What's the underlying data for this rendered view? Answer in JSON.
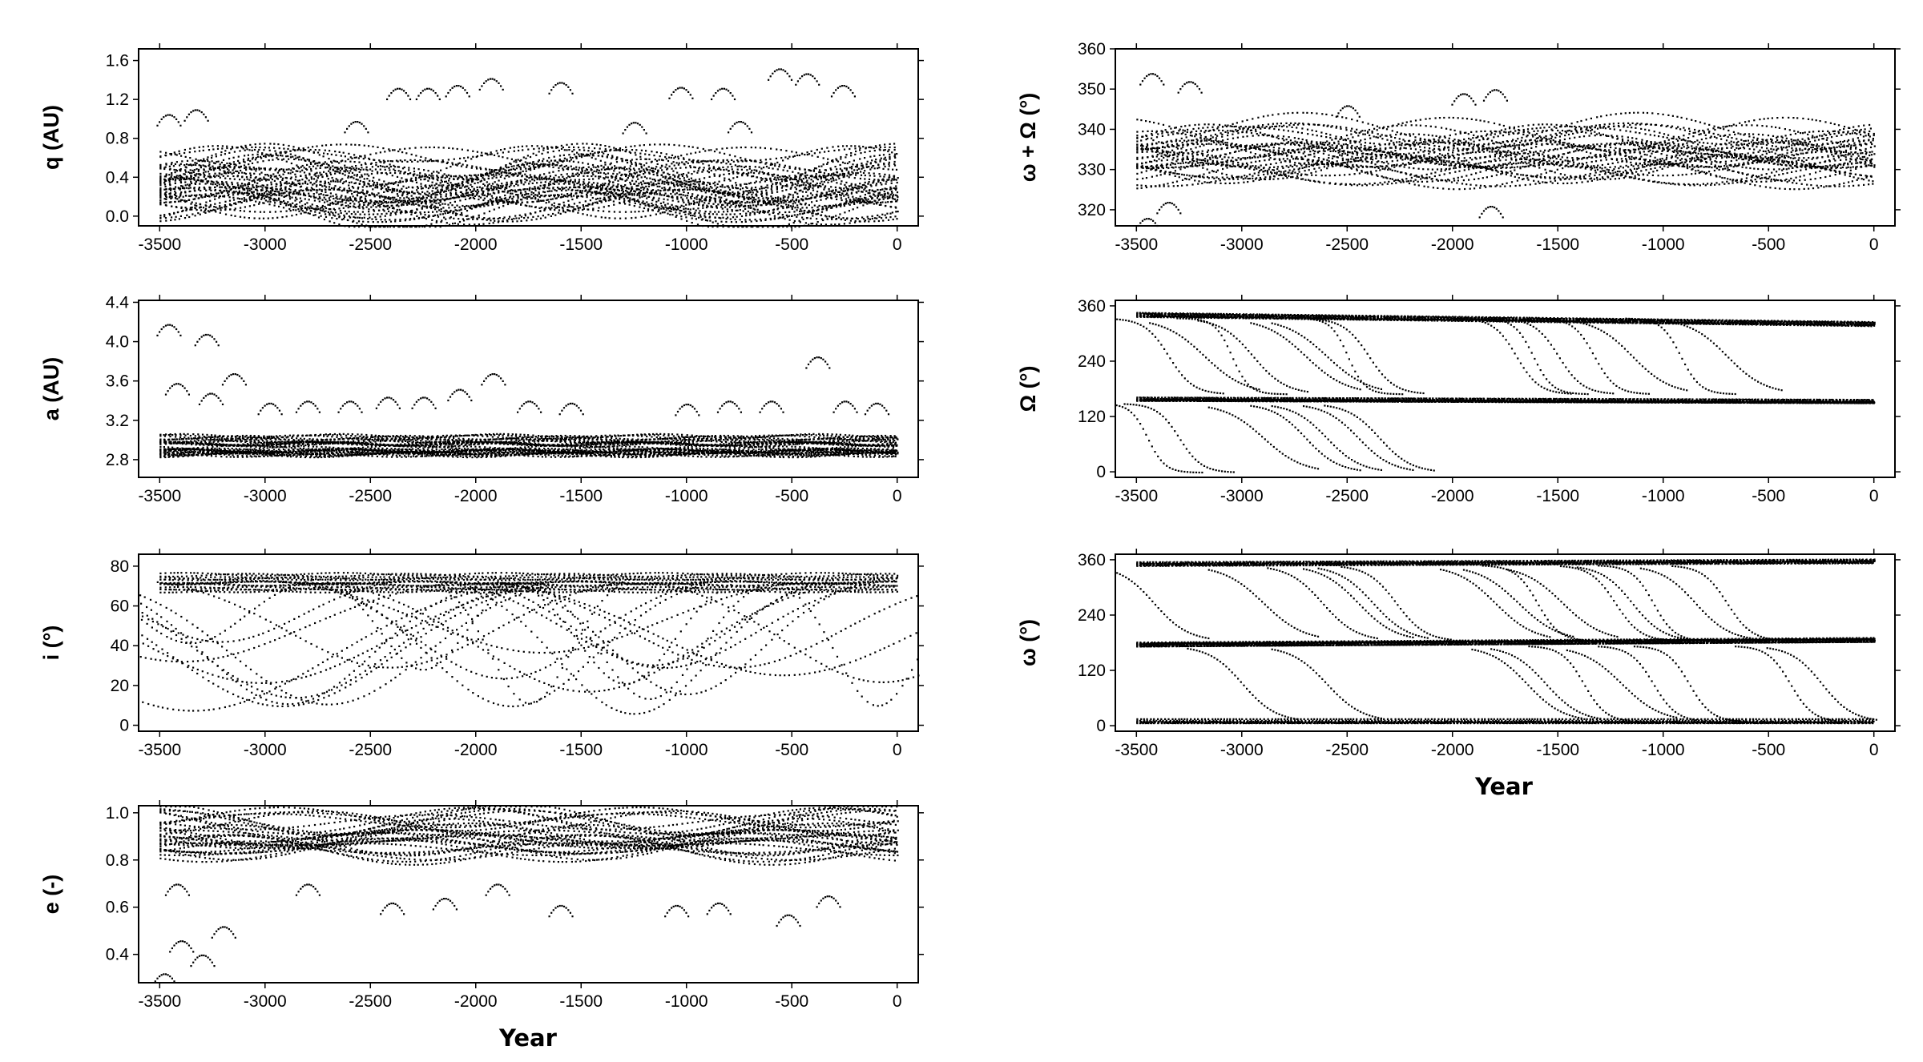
{
  "figure": {
    "x_axis_label": "Year"
  },
  "chart_data": [
    {
      "id": "q",
      "type": "scatter",
      "ylabel": "q (AU)",
      "xlabel": "",
      "xlim": [
        -3600,
        100
      ],
      "ylim": [
        -0.1,
        1.72
      ],
      "xticks": [
        -3500,
        -3000,
        -2500,
        -2000,
        -1500,
        -1000,
        -500,
        0
      ],
      "yticks": [
        0.0,
        0.4,
        0.8,
        1.2,
        1.6
      ],
      "ytick_labels": [
        "0.0",
        "0.4",
        "0.8",
        "1.2",
        "1.6"
      ],
      "curves": [
        {
          "kind": "sine",
          "base": 0.22,
          "amp": 0.18,
          "period": 1700,
          "phase": 0.3,
          "count": 30,
          "spread": 0.3
        },
        {
          "kind": "sine",
          "base": 0.55,
          "amp": 0.18,
          "period": 1500,
          "phase": 1.1,
          "count": 10,
          "spread": 0.25
        },
        {
          "kind": "arcs",
          "points": [
            [
              -3460,
              1.05
            ],
            [
              -3330,
              1.1
            ],
            [
              -2370,
              1.32
            ],
            [
              -2230,
              1.32
            ],
            [
              -2090,
              1.35
            ],
            [
              -1930,
              1.42
            ],
            [
              -1600,
              1.38
            ],
            [
              -1030,
              1.33
            ],
            [
              -830,
              1.32
            ],
            [
              -560,
              1.52
            ],
            [
              -430,
              1.47
            ],
            [
              -260,
              1.35
            ],
            [
              -2570,
              0.98
            ],
            [
              -1250,
              0.97
            ],
            [
              -750,
              0.98
            ]
          ]
        }
      ]
    },
    {
      "id": "a",
      "type": "scatter",
      "ylabel": "a (AU)",
      "xlabel": "",
      "xlim": [
        -3600,
        100
      ],
      "ylim": [
        2.62,
        4.42
      ],
      "xticks": [
        -3500,
        -3000,
        -2500,
        -2000,
        -1500,
        -1000,
        -500,
        0
      ],
      "yticks": [
        2.8,
        3.2,
        3.6,
        4.0,
        4.4
      ],
      "ytick_labels": [
        "2.8",
        "3.2",
        "3.6",
        "4.0",
        "4.4"
      ],
      "curves": [
        {
          "kind": "band",
          "base": 2.97,
          "spread": 0.24,
          "count": 34
        },
        {
          "kind": "arcs",
          "points": [
            [
              -3460,
              4.18
            ],
            [
              -3280,
              4.08
            ],
            [
              -3420,
              3.58
            ],
            [
              -3260,
              3.48
            ],
            [
              -3150,
              3.68
            ],
            [
              -2980,
              3.38
            ],
            [
              -2800,
              3.4
            ],
            [
              -2600,
              3.4
            ],
            [
              -2420,
              3.44
            ],
            [
              -2250,
              3.44
            ],
            [
              -2080,
              3.52
            ],
            [
              -1920,
              3.68
            ],
            [
              -1750,
              3.4
            ],
            [
              -1550,
              3.38
            ],
            [
              -1000,
              3.37
            ],
            [
              -800,
              3.4
            ],
            [
              -600,
              3.4
            ],
            [
              -380,
              3.85
            ],
            [
              -250,
              3.4
            ],
            [
              -100,
              3.38
            ]
          ]
        }
      ]
    },
    {
      "id": "i",
      "type": "scatter",
      "ylabel": "i (°)",
      "xlabel": "",
      "xlim": [
        -3600,
        100
      ],
      "ylim": [
        -3,
        86
      ],
      "xticks": [
        -3500,
        -3000,
        -2500,
        -2000,
        -1500,
        -1000,
        -500,
        0
      ],
      "yticks": [
        0,
        20,
        40,
        60,
        80
      ],
      "ytick_labels": [
        "0",
        "20",
        "40",
        "60",
        "80"
      ],
      "curves": [
        {
          "kind": "band",
          "base": 72,
          "spread": 9,
          "count": 14
        },
        {
          "kind": "valleys",
          "count": 26
        }
      ]
    },
    {
      "id": "e",
      "type": "scatter",
      "ylabel": "e (-)",
      "xlabel": "",
      "xlim": [
        -3600,
        100
      ],
      "ylim": [
        0.28,
        1.03
      ],
      "xticks": [
        -3500,
        -3000,
        -2500,
        -2000,
        -1500,
        -1000,
        -500,
        0
      ],
      "yticks": [
        0.4,
        0.6,
        0.8,
        1.0
      ],
      "ytick_labels": [
        "0.4",
        "0.6",
        "0.8",
        "1.0"
      ],
      "curves": [
        {
          "kind": "sine",
          "base": 0.91,
          "amp": 0.05,
          "period": 1700,
          "phase": 2.0,
          "count": 30,
          "spread": 0.14
        },
        {
          "kind": "arcs",
          "points": [
            [
              -3480,
              0.32
            ],
            [
              -3400,
              0.46
            ],
            [
              -3300,
              0.4
            ],
            [
              -3200,
              0.52
            ],
            [
              -2400,
              0.62
            ],
            [
              -2150,
              0.64
            ],
            [
              -1600,
              0.61
            ],
            [
              -1050,
              0.61
            ],
            [
              -850,
              0.62
            ],
            [
              -520,
              0.57
            ],
            [
              -330,
              0.65
            ],
            [
              -3420,
              0.7
            ],
            [
              -2800,
              0.7
            ],
            [
              -1900,
              0.7
            ]
          ]
        }
      ]
    },
    {
      "id": "wO",
      "type": "scatter",
      "ylabel": "ω + Ω (°)",
      "xlabel": "",
      "xlim": [
        -3600,
        100
      ],
      "ylim": [
        316,
        360
      ],
      "xticks": [
        -3500,
        -3000,
        -2500,
        -2000,
        -1500,
        -1000,
        -500,
        0
      ],
      "yticks": [
        320,
        330,
        340,
        350,
        360
      ],
      "ytick_labels": [
        "320",
        "330",
        "340",
        "350",
        "360"
      ],
      "curves": [
        {
          "kind": "sine",
          "base": 334.5,
          "amp": 3.5,
          "period": 1600,
          "phase": 0.8,
          "count": 30,
          "spread": 12
        },
        {
          "kind": "arcs",
          "points": [
            [
              -3430,
              354
            ],
            [
              -3250,
              352
            ],
            [
              -3450,
              318
            ],
            [
              -3350,
              322
            ],
            [
              -1950,
              349
            ],
            [
              -1800,
              350
            ],
            [
              -1820,
              321
            ],
            [
              -2500,
              346
            ]
          ]
        }
      ]
    },
    {
      "id": "Omega",
      "type": "scatter",
      "ylabel": "Ω (°)",
      "xlabel": "",
      "xlim": [
        -3600,
        100
      ],
      "ylim": [
        -12,
        372
      ],
      "xticks": [
        -3500,
        -3000,
        -2500,
        -2000,
        -1500,
        -1000,
        -500,
        0
      ],
      "yticks": [
        0,
        120,
        240,
        360
      ],
      "ytick_labels": [
        "0",
        "120",
        "240",
        "360"
      ],
      "curves": [
        {
          "kind": "hband",
          "y0": 342,
          "y1": 322,
          "count": 12
        },
        {
          "kind": "hband",
          "y0": 160,
          "y1": 155,
          "count": 14
        },
        {
          "kind": "steps",
          "centers": [
            -3350,
            -3180,
            -3050,
            -2950,
            -2700,
            -2600,
            -2500,
            -2400,
            -1700,
            -1620,
            -1500,
            -1330,
            -1150,
            -920,
            -700
          ],
          "from": 335,
          "to": 170
        },
        {
          "kind": "steps",
          "centers": [
            -3450,
            -3300,
            -2900,
            -2700,
            -2600,
            -2450,
            -2350
          ],
          "from": 150,
          "to": 0
        }
      ]
    },
    {
      "id": "omega",
      "type": "scatter",
      "ylabel": "ω (°)",
      "xlabel": "Year",
      "xlim": [
        -3600,
        100
      ],
      "ylim": [
        -12,
        372
      ],
      "xticks": [
        -3500,
        -3000,
        -2500,
        -2000,
        -1500,
        -1000,
        -500,
        0
      ],
      "yticks": [
        0,
        120,
        240,
        360
      ],
      "ytick_labels": [
        "0",
        "120",
        "240",
        "360"
      ],
      "curves": [
        {
          "kind": "hband",
          "y0": 352,
          "y1": 358,
          "count": 10
        },
        {
          "kind": "hband",
          "y0": 178,
          "y1": 188,
          "count": 16
        },
        {
          "kind": "hband",
          "y0": 12,
          "y1": 12,
          "count": 8
        },
        {
          "kind": "steps",
          "centers": [
            -3420,
            -2900,
            -2620,
            -2450,
            -2380,
            -2270,
            -1800,
            -1690,
            -1600,
            -1480,
            -1230,
            -1150,
            -1050,
            -850,
            -700
          ],
          "from": 350,
          "to": 185
        },
        {
          "kind": "steps",
          "centers": [
            -3000,
            -2600,
            -1650,
            -1560,
            -1380,
            -1200,
            -1050,
            -880,
            -400,
            -250
          ],
          "from": 175,
          "to": 10
        }
      ]
    }
  ]
}
